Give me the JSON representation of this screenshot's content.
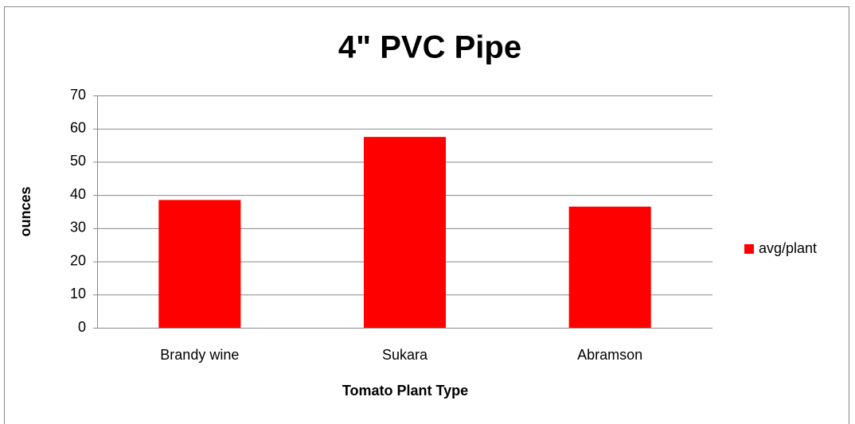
{
  "chart_data": {
    "type": "bar",
    "title": "4\" PVC Pipe",
    "xlabel": "Tomato Plant Type",
    "ylabel": "ounces",
    "categories": [
      "Brandy wine",
      "Sukara",
      "Abramson"
    ],
    "series": [
      {
        "name": "avg/plant",
        "color": "#ff0000",
        "values": [
          38.5,
          57.5,
          36.5
        ]
      }
    ],
    "ylim": [
      0,
      70
    ],
    "yticks": [
      0,
      10,
      20,
      30,
      40,
      50,
      60,
      70
    ],
    "grid": true,
    "legend": "right"
  }
}
